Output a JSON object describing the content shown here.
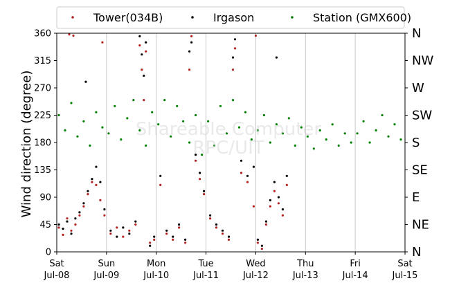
{
  "chart_data": {
    "type": "scatter",
    "ylabel": "Wind direction (degree)",
    "xlabel": "",
    "title": "",
    "ylim": [
      0,
      360
    ],
    "yticks": [
      0,
      45,
      90,
      135,
      180,
      225,
      270,
      315,
      360
    ],
    "xlim": [
      "2017-07-08",
      "2017-07-15"
    ],
    "x_tick_labels": [
      {
        "day": "Sat",
        "date": "Jul-08"
      },
      {
        "day": "Sun",
        "date": "Jul-09"
      },
      {
        "day": "Mon",
        "date": "Jul-10"
      },
      {
        "day": "Tue",
        "date": "Jul-11"
      },
      {
        "day": "Wed",
        "date": "Jul-12"
      },
      {
        "day": "Thu",
        "date": "Jul-13"
      },
      {
        "day": "Fri",
        "date": "Jul-14"
      },
      {
        "day": "Sat",
        "date": "Jul-15"
      }
    ],
    "compass_labels": [
      {
        "deg": 360,
        "label": "N"
      },
      {
        "deg": 315,
        "label": "NW"
      },
      {
        "deg": 270,
        "label": "W"
      },
      {
        "deg": 225,
        "label": "SW"
      },
      {
        "deg": 180,
        "label": "S"
      },
      {
        "deg": 135,
        "label": "SE"
      },
      {
        "deg": 90,
        "label": "E"
      },
      {
        "deg": 45,
        "label": "NE"
      },
      {
        "deg": 0,
        "label": "N"
      }
    ],
    "grid": "vertical-major",
    "legend_position": "top",
    "watermark": [
      "Shareable Computer",
      "RPC/UIT"
    ],
    "series": [
      {
        "name": "Tower(034B)",
        "color": "#b22222",
        "points": [
          [
            "2017-07-08 01:00",
            40
          ],
          [
            "2017-07-08 03:00",
            28
          ],
          [
            "2017-07-08 05:00",
            55
          ],
          [
            "2017-07-08 07:00",
            35
          ],
          [
            "2017-07-08 09:00",
            45
          ],
          [
            "2017-07-08 11:00",
            60
          ],
          [
            "2017-07-08 13:00",
            75
          ],
          [
            "2017-07-08 15:00",
            95
          ],
          [
            "2017-07-08 17:00",
            115
          ],
          [
            "2017-07-08 19:00",
            110
          ],
          [
            "2017-07-08 21:00",
            85
          ],
          [
            "2017-07-08 23:00",
            60
          ],
          [
            "2017-07-08 06:00",
            358
          ],
          [
            "2017-07-08 08:00",
            356
          ],
          [
            "2017-07-08 22:00",
            345
          ],
          [
            "2017-07-09 02:00",
            30
          ],
          [
            "2017-07-09 05:00",
            40
          ],
          [
            "2017-07-09 08:00",
            25
          ],
          [
            "2017-07-09 11:00",
            35
          ],
          [
            "2017-07-09 14:00",
            45
          ],
          [
            "2017-07-09 16:00",
            340
          ],
          [
            "2017-07-09 17:00",
            300
          ],
          [
            "2017-07-09 18:00",
            250
          ],
          [
            "2017-07-09 19:00",
            330
          ],
          [
            "2017-07-09 21:00",
            15
          ],
          [
            "2017-07-09 23:00",
            20
          ],
          [
            "2017-07-10 02:00",
            110
          ],
          [
            "2017-07-10 05:00",
            30
          ],
          [
            "2017-07-10 08:00",
            20
          ],
          [
            "2017-07-10 11:00",
            40
          ],
          [
            "2017-07-10 14:00",
            15
          ],
          [
            "2017-07-10 16:00",
            300
          ],
          [
            "2017-07-10 17:00",
            355
          ],
          [
            "2017-07-10 19:00",
            150
          ],
          [
            "2017-07-10 21:00",
            120
          ],
          [
            "2017-07-10 23:00",
            95
          ],
          [
            "2017-07-11 02:00",
            55
          ],
          [
            "2017-07-11 05:00",
            40
          ],
          [
            "2017-07-11 08:00",
            30
          ],
          [
            "2017-07-11 11:00",
            20
          ],
          [
            "2017-07-11 13:00",
            300
          ],
          [
            "2017-07-11 14:00",
            335
          ],
          [
            "2017-07-11 17:00",
            130
          ],
          [
            "2017-07-11 20:00",
            115
          ],
          [
            "2017-07-11 23:00",
            75
          ],
          [
            "2017-07-12 00:00",
            356
          ],
          [
            "2017-07-12 01:00",
            15
          ],
          [
            "2017-07-12 03:00",
            5
          ],
          [
            "2017-07-12 05:00",
            45
          ],
          [
            "2017-07-12 07:00",
            75
          ],
          [
            "2017-07-12 09:00",
            100
          ],
          [
            "2017-07-12 11:00",
            80
          ],
          [
            "2017-07-12 13:00",
            60
          ],
          [
            "2017-07-12 15:00",
            110
          ]
        ]
      },
      {
        "name": "Irgason",
        "color": "#000000",
        "points": [
          [
            "2017-07-08 01:00",
            45
          ],
          [
            "2017-07-08 03:00",
            38
          ],
          [
            "2017-07-08 05:00",
            50
          ],
          [
            "2017-07-08 07:00",
            30
          ],
          [
            "2017-07-08 09:00",
            55
          ],
          [
            "2017-07-08 11:00",
            65
          ],
          [
            "2017-07-08 13:00",
            80
          ],
          [
            "2017-07-08 15:00",
            100
          ],
          [
            "2017-07-08 17:00",
            120
          ],
          [
            "2017-07-08 19:00",
            140
          ],
          [
            "2017-07-08 21:00",
            115
          ],
          [
            "2017-07-08 23:00",
            70
          ],
          [
            "2017-07-08 14:00",
            280
          ],
          [
            "2017-07-09 02:00",
            35
          ],
          [
            "2017-07-09 05:00",
            25
          ],
          [
            "2017-07-09 08:00",
            40
          ],
          [
            "2017-07-09 11:00",
            30
          ],
          [
            "2017-07-09 14:00",
            50
          ],
          [
            "2017-07-09 16:00",
            355
          ],
          [
            "2017-07-09 17:00",
            325
          ],
          [
            "2017-07-09 18:00",
            290
          ],
          [
            "2017-07-09 19:00",
            345
          ],
          [
            "2017-07-09 21:00",
            10
          ],
          [
            "2017-07-09 23:00",
            25
          ],
          [
            "2017-07-10 02:00",
            125
          ],
          [
            "2017-07-10 05:00",
            35
          ],
          [
            "2017-07-10 08:00",
            25
          ],
          [
            "2017-07-10 11:00",
            45
          ],
          [
            "2017-07-10 14:00",
            20
          ],
          [
            "2017-07-10 16:00",
            330
          ],
          [
            "2017-07-10 17:00",
            345
          ],
          [
            "2017-07-10 19:00",
            160
          ],
          [
            "2017-07-10 21:00",
            130
          ],
          [
            "2017-07-10 23:00",
            100
          ],
          [
            "2017-07-11 02:00",
            60
          ],
          [
            "2017-07-11 05:00",
            45
          ],
          [
            "2017-07-11 08:00",
            35
          ],
          [
            "2017-07-11 11:00",
            25
          ],
          [
            "2017-07-11 13:00",
            320
          ],
          [
            "2017-07-11 14:00",
            350
          ],
          [
            "2017-07-11 17:00",
            150
          ],
          [
            "2017-07-11 20:00",
            125
          ],
          [
            "2017-07-11 23:00",
            140
          ],
          [
            "2017-07-12 01:00",
            20
          ],
          [
            "2017-07-12 03:00",
            10
          ],
          [
            "2017-07-12 05:00",
            50
          ],
          [
            "2017-07-12 07:00",
            85
          ],
          [
            "2017-07-12 09:00",
            115
          ],
          [
            "2017-07-12 11:00",
            90
          ],
          [
            "2017-07-12 13:00",
            70
          ],
          [
            "2017-07-12 15:00",
            125
          ],
          [
            "2017-07-12 10:00",
            320
          ]
        ]
      },
      {
        "name": "Station (GMX600)",
        "color": "#008000",
        "points": [
          [
            "2017-07-08 01:00",
            225
          ],
          [
            "2017-07-08 04:00",
            200
          ],
          [
            "2017-07-08 07:00",
            245
          ],
          [
            "2017-07-08 10:00",
            190
          ],
          [
            "2017-07-08 13:00",
            215
          ],
          [
            "2017-07-08 16:00",
            175
          ],
          [
            "2017-07-08 19:00",
            230
          ],
          [
            "2017-07-08 22:00",
            205
          ],
          [
            "2017-07-09 01:00",
            195
          ],
          [
            "2017-07-09 04:00",
            240
          ],
          [
            "2017-07-09 07:00",
            185
          ],
          [
            "2017-07-09 10:00",
            220
          ],
          [
            "2017-07-09 13:00",
            250
          ],
          [
            "2017-07-09 16:00",
            200
          ],
          [
            "2017-07-09 19:00",
            175
          ],
          [
            "2017-07-09 22:00",
            230
          ],
          [
            "2017-07-10 01:00",
            210
          ],
          [
            "2017-07-10 04:00",
            250
          ],
          [
            "2017-07-10 07:00",
            190
          ],
          [
            "2017-07-10 10:00",
            240
          ],
          [
            "2017-07-10 13:00",
            215
          ],
          [
            "2017-07-10 16:00",
            180
          ],
          [
            "2017-07-10 19:00",
            225
          ],
          [
            "2017-07-10 22:00",
            160
          ],
          [
            "2017-07-11 01:00",
            215
          ],
          [
            "2017-07-11 04:00",
            175
          ],
          [
            "2017-07-11 07:00",
            240
          ],
          [
            "2017-07-11 10:00",
            195
          ],
          [
            "2017-07-11 13:00",
            250
          ],
          [
            "2017-07-11 16:00",
            205
          ],
          [
            "2017-07-11 19:00",
            230
          ],
          [
            "2017-07-11 22:00",
            185
          ],
          [
            "2017-07-12 01:00",
            200
          ],
          [
            "2017-07-12 04:00",
            225
          ],
          [
            "2017-07-12 07:00",
            180
          ],
          [
            "2017-07-12 10:00",
            210
          ],
          [
            "2017-07-12 13:00",
            195
          ],
          [
            "2017-07-12 16:00",
            220
          ],
          [
            "2017-07-12 19:00",
            175
          ],
          [
            "2017-07-12 22:00",
            205
          ],
          [
            "2017-07-13 01:00",
            190
          ],
          [
            "2017-07-13 04:00",
            170
          ],
          [
            "2017-07-13 07:00",
            200
          ],
          [
            "2017-07-13 10:00",
            185
          ],
          [
            "2017-07-13 13:00",
            210
          ],
          [
            "2017-07-13 16:00",
            175
          ],
          [
            "2017-07-13 19:00",
            195
          ],
          [
            "2017-07-13 22:00",
            180
          ],
          [
            "2017-07-14 01:00",
            195
          ],
          [
            "2017-07-14 04:00",
            215
          ],
          [
            "2017-07-14 07:00",
            180
          ],
          [
            "2017-07-14 10:00",
            200
          ],
          [
            "2017-07-14 13:00",
            225
          ],
          [
            "2017-07-14 16:00",
            190
          ],
          [
            "2017-07-14 19:00",
            210
          ],
          [
            "2017-07-14 22:00",
            185
          ]
        ]
      }
    ]
  }
}
